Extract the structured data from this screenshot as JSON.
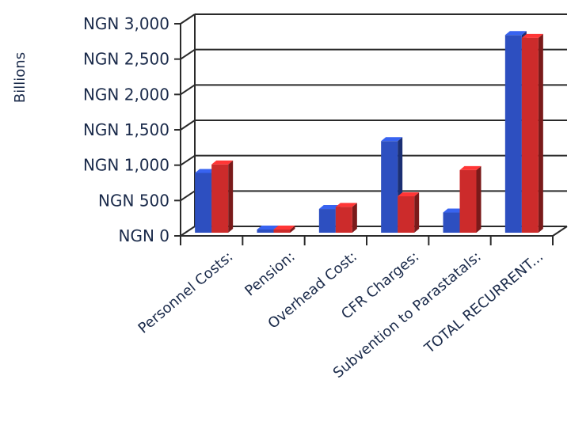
{
  "chart_data": {
    "type": "bar",
    "title": "",
    "xlabel": "",
    "ylabel": "Billions",
    "categories": [
      "Personnel Costs:",
      "Pension:",
      "Overhead Cost:",
      "CFR Charges:",
      "Subvention to Parastatals:",
      "TOTAL RECURRENT..."
    ],
    "series": [
      {
        "color": "#2d4fc0",
        "values": [
          890,
          90,
          380,
          1340,
          330,
          2840
        ]
      },
      {
        "color": "#cc2b2b",
        "values": [
          1010,
          90,
          410,
          560,
          930,
          2800
        ]
      }
    ],
    "yticks": [
      "NGN 0",
      "NGN 500",
      "NGN 1,000",
      "NGN 1,500",
      "NGN 2,000",
      "NGN 2,500",
      "NGN 3,000"
    ],
    "ylim": [
      0,
      3000
    ],
    "grid": true,
    "legend": "none",
    "style": "3d-clustered-column"
  }
}
